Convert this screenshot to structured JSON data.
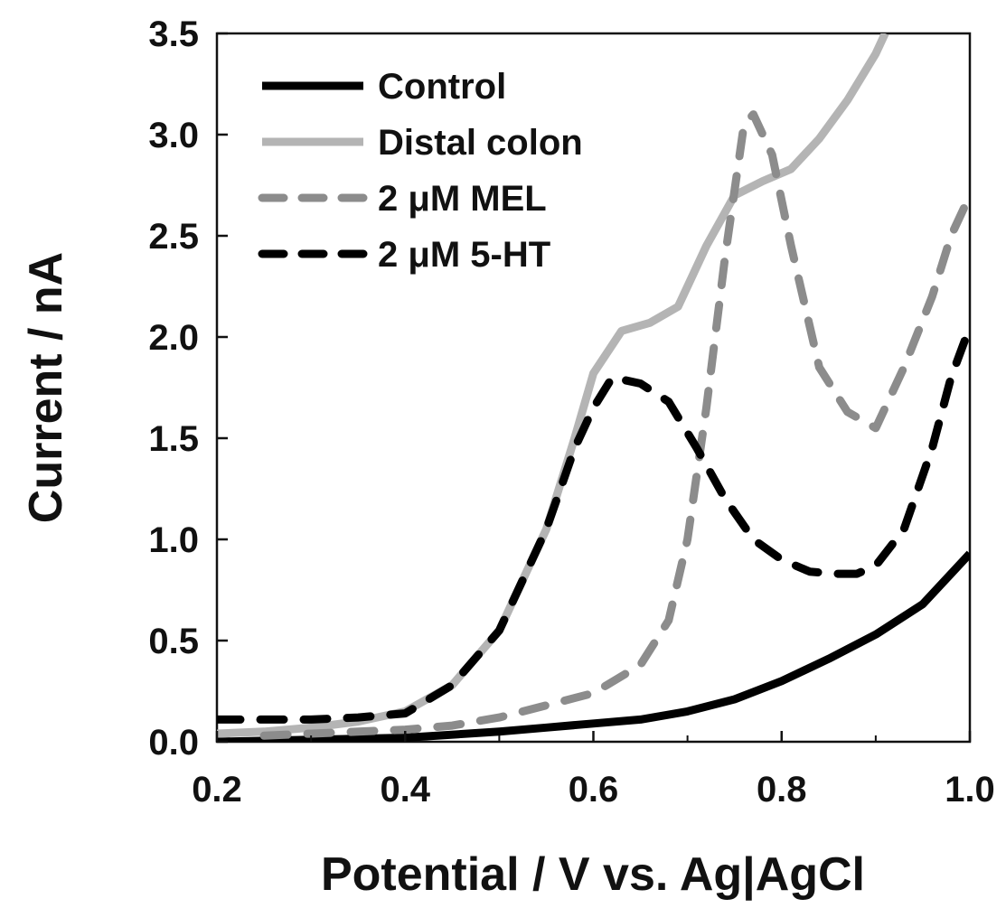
{
  "chart_data": {
    "type": "line",
    "title": "",
    "xlabel": "Potential / V vs. Ag|AgCl",
    "ylabel": "Current / nA",
    "xlim": [
      0.2,
      1.0
    ],
    "ylim": [
      0.0,
      3.5
    ],
    "xticks": [
      "0.2",
      "0.4",
      "0.6",
      "0.8",
      "1.0"
    ],
    "yticks": [
      "0.0",
      "0.5",
      "1.0",
      "1.5",
      "2.0",
      "2.5",
      "3.0",
      "3.5"
    ],
    "grid": false,
    "legend_position": "top-left",
    "series": [
      {
        "name": "Control",
        "color": "#000000",
        "style": "solid",
        "points": [
          [
            0.2,
            0.0
          ],
          [
            0.3,
            0.01
          ],
          [
            0.4,
            0.02
          ],
          [
            0.5,
            0.05
          ],
          [
            0.55,
            0.07
          ],
          [
            0.6,
            0.09
          ],
          [
            0.65,
            0.11
          ],
          [
            0.7,
            0.15
          ],
          [
            0.75,
            0.21
          ],
          [
            0.8,
            0.3
          ],
          [
            0.85,
            0.41
          ],
          [
            0.9,
            0.53
          ],
          [
            0.95,
            0.68
          ],
          [
            1.0,
            0.93
          ]
        ]
      },
      {
        "name": "Distal colon",
        "color": "#b4b4b4",
        "style": "solid",
        "points": [
          [
            0.2,
            0.04
          ],
          [
            0.25,
            0.05
          ],
          [
            0.3,
            0.07
          ],
          [
            0.35,
            0.1
          ],
          [
            0.4,
            0.15
          ],
          [
            0.45,
            0.28
          ],
          [
            0.5,
            0.55
          ],
          [
            0.55,
            1.05
          ],
          [
            0.58,
            1.5
          ],
          [
            0.6,
            1.82
          ],
          [
            0.63,
            2.03
          ],
          [
            0.66,
            2.07
          ],
          [
            0.69,
            2.15
          ],
          [
            0.72,
            2.45
          ],
          [
            0.75,
            2.7
          ],
          [
            0.78,
            2.77
          ],
          [
            0.81,
            2.83
          ],
          [
            0.84,
            2.98
          ],
          [
            0.87,
            3.17
          ],
          [
            0.9,
            3.4
          ],
          [
            0.91,
            3.5
          ]
        ]
      },
      {
        "name": "2 μM MEL",
        "color": "#8c8c8c",
        "style": "dashed",
        "points": [
          [
            0.25,
            0.03
          ],
          [
            0.3,
            0.04
          ],
          [
            0.35,
            0.05
          ],
          [
            0.4,
            0.06
          ],
          [
            0.45,
            0.08
          ],
          [
            0.5,
            0.12
          ],
          [
            0.55,
            0.18
          ],
          [
            0.6,
            0.24
          ],
          [
            0.65,
            0.38
          ],
          [
            0.68,
            0.6
          ],
          [
            0.7,
            1.0
          ],
          [
            0.72,
            1.65
          ],
          [
            0.74,
            2.4
          ],
          [
            0.76,
            3.05
          ],
          [
            0.77,
            3.1
          ],
          [
            0.79,
            2.9
          ],
          [
            0.81,
            2.45
          ],
          [
            0.84,
            1.85
          ],
          [
            0.87,
            1.63
          ],
          [
            0.9,
            1.55
          ],
          [
            0.93,
            1.85
          ],
          [
            0.96,
            2.2
          ],
          [
            0.98,
            2.5
          ],
          [
            1.0,
            2.7
          ]
        ]
      },
      {
        "name": "2 μM 5-HT",
        "color": "#000000",
        "style": "dashed",
        "points": [
          [
            0.2,
            0.11
          ],
          [
            0.25,
            0.11
          ],
          [
            0.3,
            0.11
          ],
          [
            0.35,
            0.12
          ],
          [
            0.4,
            0.14
          ],
          [
            0.45,
            0.28
          ],
          [
            0.5,
            0.55
          ],
          [
            0.55,
            1.05
          ],
          [
            0.58,
            1.45
          ],
          [
            0.6,
            1.65
          ],
          [
            0.62,
            1.8
          ],
          [
            0.65,
            1.77
          ],
          [
            0.68,
            1.68
          ],
          [
            0.71,
            1.45
          ],
          [
            0.74,
            1.2
          ],
          [
            0.77,
            1.0
          ],
          [
            0.8,
            0.9
          ],
          [
            0.83,
            0.84
          ],
          [
            0.86,
            0.83
          ],
          [
            0.88,
            0.83
          ],
          [
            0.9,
            0.87
          ],
          [
            0.93,
            1.05
          ],
          [
            0.96,
            1.45
          ],
          [
            0.98,
            1.8
          ],
          [
            1.0,
            2.05
          ]
        ]
      }
    ]
  }
}
